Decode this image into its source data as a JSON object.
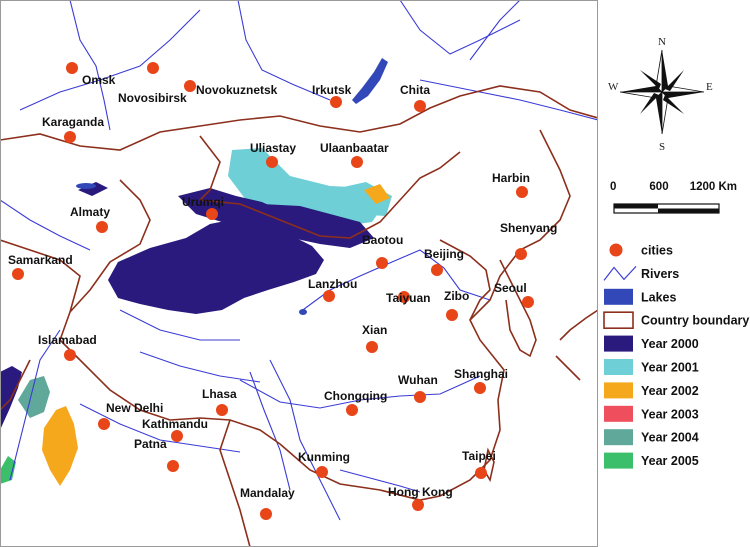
{
  "colors": {
    "river": "#3b3bd6",
    "lake": "#3348b8",
    "boundary": "#8c2f1c",
    "city": "#e84518",
    "y2000": "#2a1a7e",
    "y2001": "#6fcfd6",
    "y2002": "#f5a81c",
    "y2003": "#ef4f5c",
    "y2004": "#5fa89a",
    "y2005": "#3bbf6a"
  },
  "cities": [
    {
      "name": "Omsk"
    },
    {
      "name": "Novosibirsk"
    },
    {
      "name": "Novokuznetsk"
    },
    {
      "name": "Irkutsk"
    },
    {
      "name": "Chita"
    },
    {
      "name": "Karaganda"
    },
    {
      "name": "Uliastay"
    },
    {
      "name": "Ulaanbaatar"
    },
    {
      "name": "Harbin"
    },
    {
      "name": "Almaty"
    },
    {
      "name": "Urumqi"
    },
    {
      "name": "Shenyang"
    },
    {
      "name": "Baotou"
    },
    {
      "name": "Beijing"
    },
    {
      "name": "Samarkand"
    },
    {
      "name": "Lanzhou"
    },
    {
      "name": "Taiyuan"
    },
    {
      "name": "Zibo"
    },
    {
      "name": "Seoul"
    },
    {
      "name": "Xian"
    },
    {
      "name": "Islamabad"
    },
    {
      "name": "Shanghai"
    },
    {
      "name": "Wuhan"
    },
    {
      "name": "Lhasa"
    },
    {
      "name": "Chongqing"
    },
    {
      "name": "New Delhi"
    },
    {
      "name": "Kathmandu"
    },
    {
      "name": "Patna"
    },
    {
      "name": "Kunming"
    },
    {
      "name": "Taipei"
    },
    {
      "name": "Hong Kong"
    },
    {
      "name": "Mandalay"
    }
  ],
  "compass": {
    "n": "N",
    "s": "S",
    "e": "E",
    "w": "W",
    "icon": "compass-rose-icon"
  },
  "scale": {
    "ticks": [
      "0",
      "600",
      "1200 Km"
    ]
  },
  "legend": [
    {
      "label": "cities",
      "icon": "city-dot-icon"
    },
    {
      "label": "Rivers",
      "icon": "river-line-icon"
    },
    {
      "label": "Lakes",
      "icon": "lake-swatch-icon"
    },
    {
      "label": "Country boundary",
      "icon": "boundary-swatch-icon"
    },
    {
      "label": "Year 2000",
      "icon": "swatch-icon"
    },
    {
      "label": "Year 2001",
      "icon": "swatch-icon"
    },
    {
      "label": "Year 2002",
      "icon": "swatch-icon"
    },
    {
      "label": "Year 2003",
      "icon": "swatch-icon"
    },
    {
      "label": "Year 2004",
      "icon": "swatch-icon"
    },
    {
      "label": "Year 2005",
      "icon": "swatch-icon"
    }
  ]
}
